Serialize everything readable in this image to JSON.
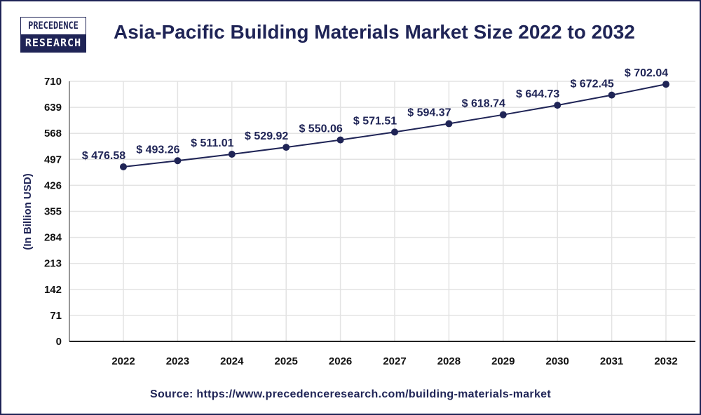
{
  "logo": {
    "line1": "PRECEDENCE",
    "line2": "RESEARCH"
  },
  "colors": {
    "brand": "#1f2456",
    "line": "#1f2456",
    "grid": "#e3e3e3"
  },
  "source": "Source: https://www.precedenceresearch.com/building-materials-market",
  "chart_data": {
    "type": "line",
    "title": "Asia-Pacific Building Materials Market Size 2022 to 2032",
    "xlabel": "",
    "ylabel": "(In Billion USD)",
    "categories": [
      "2022",
      "2023",
      "2024",
      "2025",
      "2026",
      "2027",
      "2028",
      "2029",
      "2030",
      "2031",
      "2032"
    ],
    "values": [
      476.58,
      493.26,
      511.01,
      529.92,
      550.06,
      571.51,
      594.37,
      618.74,
      644.73,
      672.45,
      702.04
    ],
    "data_labels": [
      "$ 476.58",
      "$ 493.26",
      "$ 511.01",
      "$ 529.92",
      "$ 550.06",
      "$ 571.51",
      "$ 594.37",
      "$ 618.74",
      "$ 644.73",
      "$ 672.45",
      "$ 702.04"
    ],
    "yticks": [
      0,
      71,
      142,
      213,
      284,
      355,
      426,
      497,
      568,
      639,
      710
    ],
    "ylim": [
      0,
      710
    ],
    "grid": true,
    "legend": "none"
  }
}
